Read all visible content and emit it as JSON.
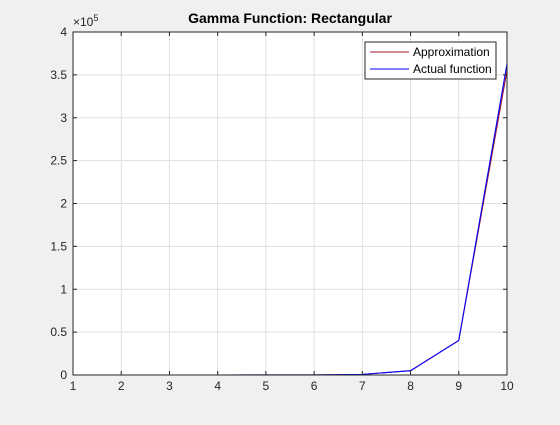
{
  "chart_data": {
    "type": "line",
    "title": "Gamma Function: Rectangular",
    "xlabel": "",
    "ylabel": "",
    "x": [
      1,
      2,
      3,
      4,
      5,
      6,
      7,
      8,
      9,
      10
    ],
    "xlim": [
      1,
      10
    ],
    "ylim": [
      0,
      400000
    ],
    "x_ticks": [
      1,
      2,
      3,
      4,
      5,
      6,
      7,
      8,
      9,
      10
    ],
    "y_ticks": [
      0,
      50000,
      100000,
      150000,
      200000,
      250000,
      300000,
      350000,
      400000
    ],
    "y_tick_labels": [
      "0",
      "0.5",
      "1",
      "1.5",
      "2",
      "2.5",
      "3",
      "3.5",
      "4"
    ],
    "y_exponent": {
      "base": "×10",
      "power": "5"
    },
    "grid": true,
    "legend_position": "top-right",
    "series": [
      {
        "name": "Approximation",
        "color": "#a2142f",
        "values": [
          1,
          1,
          2,
          6,
          24,
          120,
          720,
          5040,
          40320,
          355000
        ]
      },
      {
        "name": "Actual function",
        "color": "#0000ff",
        "values": [
          1,
          1,
          2,
          6,
          24,
          120,
          720,
          5040,
          40320,
          362880
        ]
      }
    ]
  }
}
